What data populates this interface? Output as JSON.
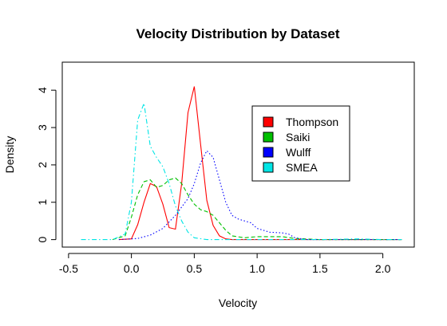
{
  "chart_data": {
    "type": "line",
    "title": "Velocity Distribution by Dataset",
    "xlabel": "Velocity",
    "ylabel": "Density",
    "xlim": [
      -0.55,
      2.25
    ],
    "ylim": [
      -0.2,
      4.75
    ],
    "x_ticks": [
      {
        "value": -0.5,
        "label": "-0.5"
      },
      {
        "value": 0.0,
        "label": "0.0"
      },
      {
        "value": 0.5,
        "label": "0.5"
      },
      {
        "value": 1.0,
        "label": "1.0"
      },
      {
        "value": 1.5,
        "label": "1.5"
      },
      {
        "value": 2.0,
        "label": "2.0"
      }
    ],
    "y_ticks": [
      {
        "value": 0,
        "label": "0"
      },
      {
        "value": 1,
        "label": "1"
      },
      {
        "value": 2,
        "label": "2"
      },
      {
        "value": 3,
        "label": "3"
      },
      {
        "value": 4,
        "label": "4"
      }
    ],
    "legend_position": "top-right",
    "series": [
      {
        "name": "Thompson",
        "color": "#ff0000",
        "dash": "solid",
        "points": [
          [
            -0.1,
            0
          ],
          [
            0.0,
            0.02
          ],
          [
            0.05,
            0.4
          ],
          [
            0.1,
            1.0
          ],
          [
            0.15,
            1.5
          ],
          [
            0.2,
            1.42
          ],
          [
            0.25,
            0.95
          ],
          [
            0.3,
            0.32
          ],
          [
            0.35,
            0.28
          ],
          [
            0.4,
            1.5
          ],
          [
            0.45,
            3.4
          ],
          [
            0.5,
            4.1
          ],
          [
            0.55,
            2.55
          ],
          [
            0.6,
            1.05
          ],
          [
            0.65,
            0.38
          ],
          [
            0.7,
            0.1
          ],
          [
            0.75,
            0.02
          ],
          [
            0.8,
            0
          ],
          [
            1.0,
            0
          ],
          [
            1.5,
            0
          ],
          [
            2.0,
            0
          ],
          [
            2.15,
            0
          ]
        ]
      },
      {
        "name": "Saiki",
        "color": "#00c000",
        "dash": "dashed",
        "points": [
          [
            -0.15,
            0
          ],
          [
            -0.05,
            0.1
          ],
          [
            0.0,
            0.6
          ],
          [
            0.05,
            1.2
          ],
          [
            0.1,
            1.55
          ],
          [
            0.15,
            1.6
          ],
          [
            0.2,
            1.4
          ],
          [
            0.25,
            1.45
          ],
          [
            0.3,
            1.6
          ],
          [
            0.35,
            1.65
          ],
          [
            0.4,
            1.5
          ],
          [
            0.45,
            1.2
          ],
          [
            0.5,
            0.95
          ],
          [
            0.55,
            0.8
          ],
          [
            0.6,
            0.75
          ],
          [
            0.65,
            0.65
          ],
          [
            0.7,
            0.45
          ],
          [
            0.75,
            0.25
          ],
          [
            0.8,
            0.1
          ],
          [
            0.9,
            0.05
          ],
          [
            1.0,
            0.08
          ],
          [
            1.2,
            0.08
          ],
          [
            1.3,
            0.03
          ],
          [
            1.5,
            0
          ],
          [
            2.15,
            0
          ]
        ]
      },
      {
        "name": "Wulff",
        "color": "#0000ff",
        "dash": "dotted",
        "points": [
          [
            -0.1,
            0
          ],
          [
            0.05,
            0.03
          ],
          [
            0.15,
            0.12
          ],
          [
            0.25,
            0.3
          ],
          [
            0.35,
            0.65
          ],
          [
            0.45,
            1.1
          ],
          [
            0.5,
            1.5
          ],
          [
            0.55,
            2.05
          ],
          [
            0.6,
            2.38
          ],
          [
            0.65,
            2.2
          ],
          [
            0.7,
            1.6
          ],
          [
            0.75,
            1.0
          ],
          [
            0.8,
            0.65
          ],
          [
            0.85,
            0.55
          ],
          [
            0.9,
            0.5
          ],
          [
            0.95,
            0.45
          ],
          [
            1.0,
            0.3
          ],
          [
            1.05,
            0.25
          ],
          [
            1.1,
            0.2
          ],
          [
            1.2,
            0.18
          ],
          [
            1.25,
            0.15
          ],
          [
            1.3,
            0.05
          ],
          [
            1.4,
            0
          ],
          [
            2.15,
            0
          ]
        ]
      },
      {
        "name": "SMEA",
        "color": "#00e5e5",
        "dash": "dashdot",
        "points": [
          [
            -0.4,
            0
          ],
          [
            -0.15,
            0
          ],
          [
            -0.05,
            0.15
          ],
          [
            0.0,
            1.0
          ],
          [
            0.05,
            3.2
          ],
          [
            0.1,
            3.65
          ],
          [
            0.15,
            2.5
          ],
          [
            0.2,
            2.2
          ],
          [
            0.25,
            1.95
          ],
          [
            0.3,
            1.5
          ],
          [
            0.35,
            0.9
          ],
          [
            0.4,
            0.5
          ],
          [
            0.45,
            0.2
          ],
          [
            0.5,
            0.05
          ],
          [
            0.6,
            0
          ],
          [
            1.5,
            0
          ],
          [
            1.8,
            0.02
          ],
          [
            2.0,
            0
          ],
          [
            2.15,
            0
          ]
        ]
      }
    ]
  }
}
